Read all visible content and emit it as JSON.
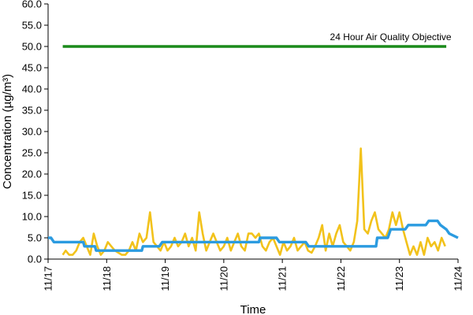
{
  "chart_data": {
    "type": "line",
    "xlabel": "Time",
    "ylabel": "Concentration (µg/m³)",
    "ylim": [
      0,
      60
    ],
    "y_ticks": [
      "0.0",
      "5.0",
      "10.0",
      "15.0",
      "20.0",
      "25.0",
      "30.0",
      "35.0",
      "40.0",
      "45.0",
      "50.0",
      "55.0",
      "60.0"
    ],
    "x_ticks": [
      "11/17",
      "11/18",
      "11/19",
      "11/20",
      "11/21",
      "11/22",
      "11/23",
      "11/24"
    ],
    "x_range_days": [
      0,
      7
    ],
    "grid": false,
    "annotations": [
      {
        "text": "24 Hour Air Quality Objective",
        "x": 5.85,
        "y": 51.5
      }
    ],
    "series": [
      {
        "role": "objective",
        "color": "#1a8a1a",
        "x": [
          0.25,
          6.8
        ],
        "values": [
          50,
          50
        ]
      },
      {
        "role": "hourly",
        "color": "#f2c21b",
        "x": [
          0.25,
          0.3,
          0.36,
          0.42,
          0.48,
          0.54,
          0.6,
          0.66,
          0.72,
          0.78,
          0.84,
          0.9,
          0.96,
          1.02,
          1.08,
          1.14,
          1.2,
          1.26,
          1.32,
          1.38,
          1.44,
          1.5,
          1.56,
          1.62,
          1.68,
          1.74,
          1.8,
          1.86,
          1.92,
          1.98,
          2.04,
          2.1,
          2.16,
          2.22,
          2.28,
          2.34,
          2.4,
          2.46,
          2.52,
          2.58,
          2.64,
          2.7,
          2.76,
          2.82,
          2.88,
          2.94,
          3.0,
          3.06,
          3.12,
          3.18,
          3.24,
          3.3,
          3.36,
          3.42,
          3.48,
          3.54,
          3.6,
          3.66,
          3.72,
          3.78,
          3.84,
          3.9,
          3.96,
          4.02,
          4.08,
          4.14,
          4.2,
          4.26,
          4.32,
          4.38,
          4.44,
          4.5,
          4.56,
          4.62,
          4.68,
          4.74,
          4.8,
          4.86,
          4.92,
          4.98,
          5.04,
          5.1,
          5.16,
          5.22,
          5.28,
          5.34,
          5.4,
          5.46,
          5.52,
          5.58,
          5.64,
          5.7,
          5.76,
          5.82,
          5.88,
          5.94,
          6.0,
          6.06,
          6.12,
          6.18,
          6.24,
          6.3,
          6.36,
          6.42,
          6.48,
          6.54,
          6.6,
          6.66,
          6.72,
          6.78
        ],
        "values": [
          1.0,
          2.0,
          1.0,
          1.0,
          2.0,
          4.0,
          5.0,
          3.0,
          1.0,
          6.0,
          3.0,
          1.0,
          2.0,
          4.0,
          3.0,
          2.0,
          1.5,
          1.0,
          1.0,
          2.0,
          4.0,
          2.0,
          6.0,
          4.0,
          5.0,
          11.0,
          4.0,
          3.0,
          2.0,
          4.0,
          2.0,
          3.0,
          5.0,
          3.0,
          4.0,
          6.0,
          3.0,
          5.0,
          2.0,
          11.0,
          6.0,
          2.0,
          4.0,
          6.0,
          4.0,
          2.0,
          3.0,
          5.0,
          2.0,
          4.0,
          6.0,
          3.0,
          2.0,
          6.0,
          6.0,
          5.0,
          6.0,
          3.0,
          2.0,
          4.0,
          5.0,
          3.0,
          1.0,
          4.0,
          2.0,
          3.0,
          5.0,
          2.0,
          3.0,
          4.0,
          2.0,
          1.5,
          3.0,
          5.0,
          8.0,
          2.0,
          6.0,
          3.0,
          6.0,
          8.0,
          4.0,
          3.0,
          2.0,
          4.0,
          9.0,
          26.0,
          7.0,
          6.0,
          9.0,
          11.0,
          7.0,
          6.0,
          5.0,
          7.0,
          11.0,
          8.0,
          11.0,
          7.0,
          4.0,
          1.0,
          3.0,
          1.0,
          4.0,
          1.0,
          5.0,
          3.0,
          4.0,
          2.0,
          5.0,
          3.0
        ]
      },
      {
        "role": "rolling",
        "color": "#2b9be0",
        "x": [
          0.0,
          0.05,
          0.1,
          0.15,
          0.6,
          0.62,
          0.8,
          0.82,
          1.6,
          1.62,
          1.9,
          1.95,
          3.6,
          3.62,
          3.9,
          3.95,
          4.4,
          4.45,
          5.6,
          5.62,
          5.8,
          5.85,
          6.1,
          6.15,
          6.45,
          6.5,
          6.65,
          6.7,
          6.8,
          6.85,
          7.0
        ],
        "values": [
          5.0,
          5.0,
          4.0,
          4.0,
          4.0,
          3.0,
          3.0,
          2.0,
          2.0,
          3.0,
          3.0,
          4.0,
          4.0,
          5.0,
          5.0,
          4.0,
          4.0,
          3.0,
          3.0,
          5.0,
          5.0,
          7.0,
          7.0,
          8.0,
          8.0,
          9.0,
          9.0,
          8.0,
          7.0,
          6.0,
          5.0
        ]
      }
    ]
  }
}
